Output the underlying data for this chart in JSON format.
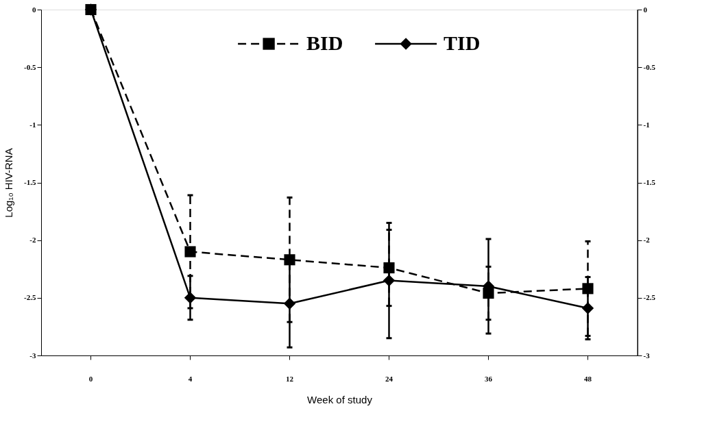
{
  "chart_data": {
    "type": "line",
    "xlabel": "Week of study",
    "ylabel": "Log₁₀ HIV-RNA",
    "categories": [
      "0",
      "4",
      "12",
      "24",
      "36",
      "48"
    ],
    "series": [
      {
        "name": "BID",
        "color": "#000000",
        "line_style": "dashed",
        "marker": "square",
        "values": [
          0,
          -2.1,
          -2.17,
          -2.24,
          -2.46,
          -2.42
        ],
        "errors": [
          null,
          0.49,
          0.54,
          0.33,
          0.23,
          0.41
        ]
      },
      {
        "name": "TID",
        "color": "#000000",
        "line_style": "solid",
        "marker": "diamond",
        "values": [
          0,
          -2.5,
          -2.55,
          -2.35,
          -2.4,
          -2.59
        ],
        "errors": [
          null,
          0.19,
          0.38,
          0.5,
          0.41,
          0.27
        ]
      }
    ],
    "ylim": [
      -3,
      0
    ],
    "yticks": [
      -3,
      -2.5,
      -2,
      -1.5,
      -1,
      -0.5,
      0
    ],
    "y2lim": [
      -3,
      0
    ],
    "y2ticks": [
      -3,
      -2.5,
      -2,
      -1.5,
      -1,
      -0.5,
      0
    ],
    "grid": false,
    "legend": "top"
  }
}
